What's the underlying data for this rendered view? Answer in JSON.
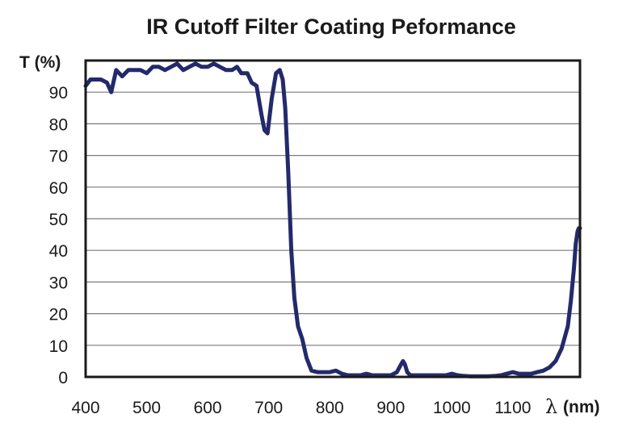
{
  "chart_data": {
    "type": "line",
    "title": "IR Cutoff Filter Coating Peformance",
    "ylabel": "T (%)",
    "xlabel_symbol": "λ",
    "xlabel_unit": "(nm)",
    "xlim": [
      400,
      1210
    ],
    "ylim": [
      0,
      100
    ],
    "x_ticks": [
      400,
      500,
      600,
      700,
      800,
      900,
      1000,
      1100
    ],
    "y_ticks": [
      0,
      10,
      20,
      30,
      40,
      50,
      60,
      70,
      80,
      90
    ],
    "grid": true,
    "line_color": "#232a6b",
    "series": [
      {
        "x": [
          400,
          408,
          415,
          425,
          435,
          442,
          450,
          460,
          470,
          480,
          490,
          500,
          510,
          520,
          530,
          540,
          550,
          560,
          570,
          580,
          590,
          600,
          610,
          620,
          630,
          640,
          648,
          655,
          665,
          672,
          680,
          688,
          693,
          698,
          705,
          712,
          718,
          723,
          727,
          732,
          737,
          742,
          748,
          755,
          762,
          770,
          780,
          790,
          800,
          810,
          820,
          830,
          840,
          850,
          860,
          870,
          880,
          890,
          900,
          910,
          917,
          920,
          923,
          927,
          932,
          940,
          950,
          960,
          970,
          980,
          990,
          1000,
          1010,
          1020,
          1030,
          1040,
          1050,
          1060,
          1070,
          1080,
          1090,
          1100,
          1110,
          1120,
          1130,
          1140,
          1150,
          1160,
          1170,
          1180,
          1190,
          1195,
          1200,
          1203,
          1206,
          1208,
          1210
        ],
        "y": [
          92,
          94,
          94,
          94,
          93,
          90,
          97,
          95,
          97,
          97,
          97,
          96,
          98,
          98,
          97,
          98,
          99,
          97,
          98,
          99,
          98,
          98,
          99,
          98,
          97,
          97,
          98,
          96,
          96,
          93,
          92,
          83,
          78,
          77,
          88,
          96,
          97,
          94,
          85,
          65,
          40,
          25,
          16,
          12,
          6,
          2,
          1.5,
          1.5,
          1.5,
          2,
          1,
          0.5,
          0.5,
          0.5,
          1,
          0.5,
          0.5,
          0.5,
          0.5,
          1.5,
          4,
          5,
          4,
          1.5,
          0.5,
          0.5,
          0.5,
          0.5,
          0.5,
          0.5,
          0.5,
          1,
          0.5,
          0.3,
          0.2,
          0.2,
          0.2,
          0.2,
          0.3,
          0.5,
          1,
          1.5,
          1,
          1,
          1,
          1.5,
          2,
          3,
          5,
          9,
          16,
          24,
          34,
          42,
          46,
          47,
          47
        ]
      }
    ]
  }
}
